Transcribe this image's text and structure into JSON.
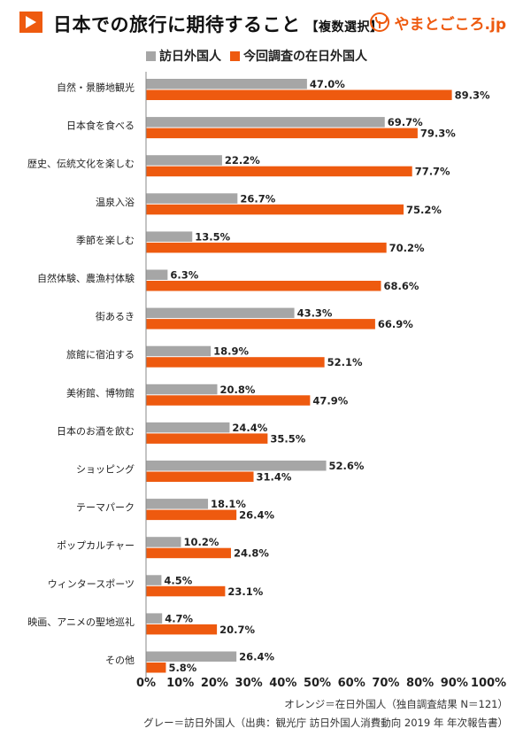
{
  "header": {
    "title": "日本での旅行に期待すること",
    "subtitle": "【複数選択】",
    "brand": "やまとごころ.jp",
    "badge_icon": "play-triangle-icon",
    "brand_icon": "yamatogokoro-logo-icon"
  },
  "colors": {
    "gray": "#a6a6a6",
    "orange": "#ee5a0f"
  },
  "footnotes": [
    "オレンジ＝在日外国人（独自調査結果 N＝121）",
    "グレー＝訪日外国人（出典：観光庁 訪日外国人消費動向 2019 年 年次報告書）"
  ],
  "chart_data": {
    "type": "bar",
    "orientation": "horizontal",
    "title": "日本での旅行に期待すること【複数選択】",
    "categories": [
      "自然・景勝地観光",
      "日本食を食べる",
      "歴史、伝統文化を楽しむ",
      "温泉入浴",
      "季節を楽しむ",
      "自然体験、農漁村体験",
      "街あるき",
      "旅館に宿泊する",
      "美術館、博物館",
      "日本のお酒を飲む",
      "ショッピング",
      "テーマパーク",
      "ポップカルチャー",
      "ウィンタースポーツ",
      "映画、アニメの聖地巡礼",
      "その他"
    ],
    "series": [
      {
        "name": "訪日外国人",
        "color": "#a6a6a6",
        "values": [
          47.0,
          69.7,
          22.2,
          26.7,
          13.5,
          6.3,
          43.3,
          18.9,
          20.8,
          24.4,
          52.6,
          18.1,
          10.2,
          4.5,
          4.7,
          26.4
        ],
        "labels": [
          "47.0%",
          "69.7%",
          "22.2%",
          "26.7%",
          "13.5%",
          "6.3%",
          "43.3%",
          "18.9%",
          "20.8%",
          "24.4%",
          "52.6%",
          "18.1%",
          "10.2%",
          "4.5%",
          "4.7%",
          "26.4%"
        ]
      },
      {
        "name": "今回調査の在日外国人",
        "color": "#ee5a0f",
        "values": [
          89.3,
          79.3,
          77.7,
          75.2,
          70.2,
          68.6,
          66.9,
          52.1,
          47.9,
          35.5,
          31.4,
          26.4,
          24.8,
          23.1,
          20.7,
          5.8
        ],
        "labels": [
          "89.3%",
          "79.3%",
          "77.7%",
          "75.2%",
          "70.2%",
          "68.6%",
          "66.9%",
          "52.1%",
          "47.9%",
          "35.5%",
          "31.4%",
          "26.4%",
          "24.8%",
          "23.1%",
          "20.7%",
          "5.8%"
        ]
      }
    ],
    "xlim": [
      0,
      100
    ],
    "xticks": [
      "0%",
      "10%",
      "20%",
      "30%",
      "40%",
      "50%",
      "60%",
      "70%",
      "80%",
      "90%",
      "100%"
    ],
    "legend_position": "top",
    "grid": false
  }
}
